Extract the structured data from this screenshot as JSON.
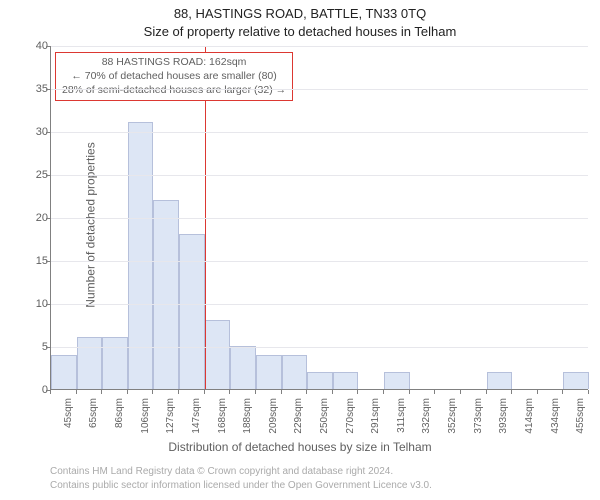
{
  "title_main": "88, HASTINGS ROAD, BATTLE, TN33 0TQ",
  "title_sub": "Size of property relative to detached houses in Telham",
  "y_axis": {
    "label": "Number of detached properties",
    "min": 0,
    "max": 40,
    "step": 5
  },
  "x_axis": {
    "label": "Distribution of detached houses by size in Telham",
    "categories": [
      "45sqm",
      "65sqm",
      "86sqm",
      "106sqm",
      "127sqm",
      "147sqm",
      "168sqm",
      "188sqm",
      "209sqm",
      "229sqm",
      "250sqm",
      "270sqm",
      "291sqm",
      "311sqm",
      "332sqm",
      "352sqm",
      "373sqm",
      "393sqm",
      "414sqm",
      "434sqm",
      "455sqm"
    ]
  },
  "bars": {
    "values": [
      4,
      6,
      6,
      31,
      22,
      18,
      8,
      5,
      4,
      4,
      2,
      2,
      0,
      2,
      0,
      0,
      0,
      2,
      0,
      0,
      2
    ],
    "fill_color": "#dde6f5",
    "border_color": "#b6c0db",
    "width_frac": 1.0
  },
  "reference": {
    "x_value": 162,
    "x_min": 45,
    "x_max": 455,
    "line_color": "#dc3832",
    "annotation": {
      "line1": "88 HASTINGS ROAD: 162sqm",
      "line2": "← 70% of detached houses are smaller (80)",
      "line3": "28% of semi-detached houses are larger (32) →"
    }
  },
  "footer": {
    "line1": "Contains HM Land Registry data © Crown copyright and database right 2024.",
    "line2": "Contains public sector information licensed under the Open Government Licence v3.0."
  },
  "style": {
    "background_color": "#ffffff",
    "grid_color": "#e7e7ec",
    "axis_color": "#808080",
    "tick_font_color": "#606060",
    "footer_color": "#aaaaaa",
    "tick_fontsize": 11,
    "label_fontsize": 12,
    "title_fontsize": 13,
    "footer_fontsize": 10
  },
  "type": "histogram"
}
